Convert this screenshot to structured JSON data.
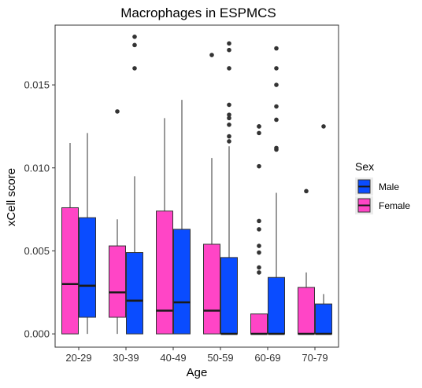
{
  "chart_data": {
    "type": "boxplot",
    "title": "Macrophages in ESPMCS",
    "xlabel": "Age",
    "ylabel": "xCell score",
    "categories": [
      "20-29",
      "30-39",
      "40-49",
      "50-59",
      "60-69",
      "70-79"
    ],
    "ylim": [
      -0.0008,
      0.0186
    ],
    "yticks": [
      0.0,
      0.005,
      0.01,
      0.015
    ],
    "ytick_labels": [
      "0.000",
      "0.005",
      "0.010",
      "0.015"
    ],
    "grid": false,
    "legend": {
      "title": "Sex",
      "placement": "right",
      "entries": [
        {
          "label": "Male",
          "color": "#0a4cff"
        },
        {
          "label": "Female",
          "color": "#ff45c6"
        }
      ]
    },
    "series": [
      {
        "name": "Female",
        "color": "#ff45c6",
        "boxes": [
          {
            "category": "20-29",
            "min": 0.0,
            "q1": 0.0,
            "median": 0.003,
            "q3": 0.0076,
            "max": 0.0115,
            "outliers": []
          },
          {
            "category": "30-39",
            "min": 0.0,
            "q1": 0.001,
            "median": 0.0025,
            "q3": 0.0053,
            "max": 0.0069,
            "outliers": [
              0.0134
            ]
          },
          {
            "category": "40-49",
            "min": 0.0,
            "q1": 0.0,
            "median": 0.0014,
            "q3": 0.0074,
            "max": 0.013,
            "outliers": []
          },
          {
            "category": "50-59",
            "min": 0.0,
            "q1": 0.0,
            "median": 0.0014,
            "q3": 0.0054,
            "max": 0.0106,
            "outliers": [
              0.0168
            ]
          },
          {
            "category": "60-69",
            "min": 0.0,
            "q1": 0.0,
            "median": 0.0,
            "q3": 0.0012,
            "max": 0.0012,
            "outliers": [
              0.0037,
              0.004,
              0.0049,
              0.0053,
              0.0063,
              0.0068,
              0.0101,
              0.0121,
              0.0125,
              0.0125
            ]
          },
          {
            "category": "70-79",
            "min": 0.0,
            "q1": 0.0,
            "median": 0.0,
            "q3": 0.0028,
            "max": 0.0037,
            "outliers": [
              0.0086
            ]
          }
        ]
      },
      {
        "name": "Male",
        "color": "#0a4cff",
        "boxes": [
          {
            "category": "20-29",
            "min": 0.0,
            "q1": 0.001,
            "median": 0.0029,
            "q3": 0.007,
            "max": 0.0121,
            "outliers": []
          },
          {
            "category": "30-39",
            "min": 0.0,
            "q1": 0.0,
            "median": 0.002,
            "q3": 0.0049,
            "max": 0.0095,
            "outliers": [
              0.016,
              0.0174,
              0.0179
            ]
          },
          {
            "category": "40-49",
            "min": 0.0,
            "q1": 0.0,
            "median": 0.0019,
            "q3": 0.0063,
            "max": 0.0141,
            "outliers": []
          },
          {
            "category": "50-59",
            "min": 0.0,
            "q1": 0.0,
            "median": 0.0,
            "q3": 0.0046,
            "max": 0.0113,
            "outliers": [
              0.0116,
              0.0119,
              0.0126,
              0.013,
              0.0132,
              0.0138,
              0.016,
              0.0171,
              0.0175
            ]
          },
          {
            "category": "60-69",
            "min": 0.0,
            "q1": 0.0,
            "median": 0.0,
            "q3": 0.0034,
            "max": 0.0085,
            "outliers": [
              0.0111,
              0.0112,
              0.0129,
              0.0137,
              0.015,
              0.016,
              0.0172
            ]
          },
          {
            "category": "70-79",
            "min": 0.0,
            "q1": 0.0,
            "median": 0.0,
            "q3": 0.0018,
            "max": 0.0024,
            "outliers": [
              0.0125
            ]
          }
        ]
      }
    ]
  }
}
